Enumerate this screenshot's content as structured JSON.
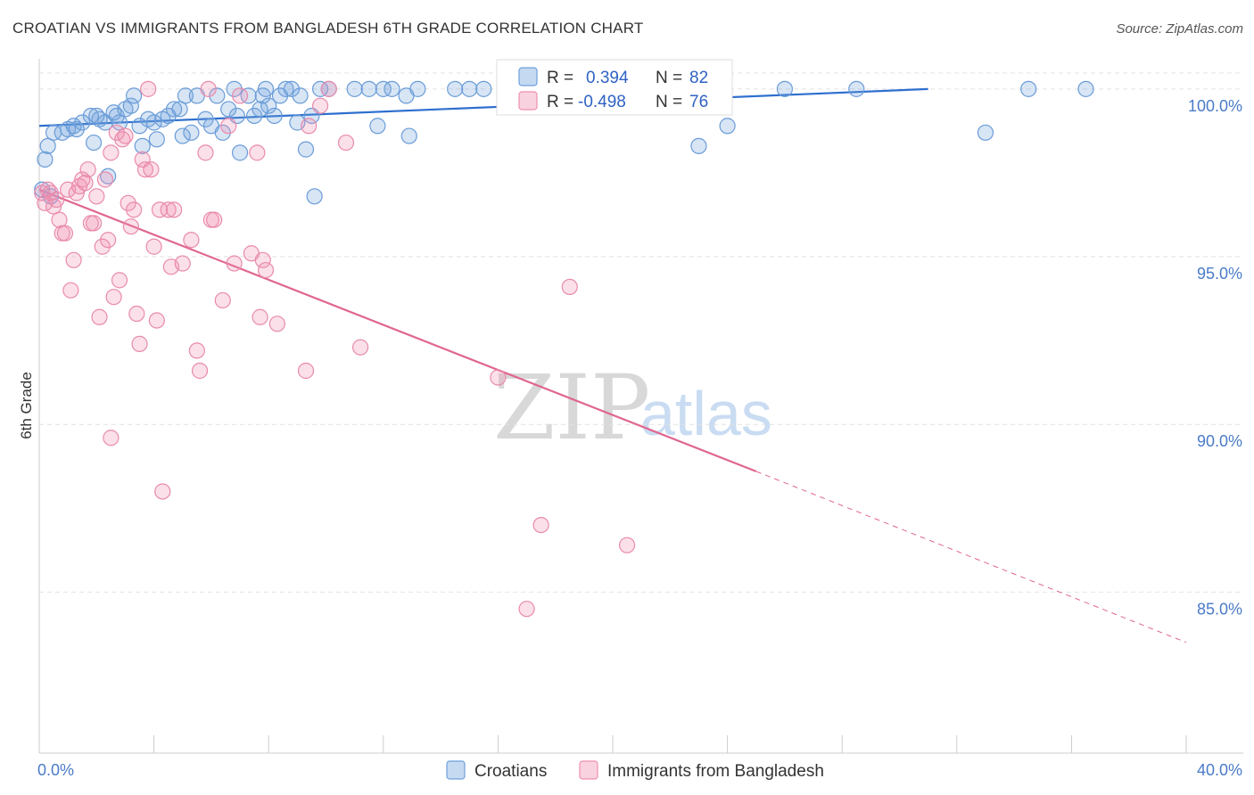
{
  "title": "CROATIAN VS IMMIGRANTS FROM BANGLADESH 6TH GRADE CORRELATION CHART",
  "source": "Source: ZipAtlas.com",
  "watermark": {
    "zip": "ZIP",
    "atlas": "atlas"
  },
  "chart_data": {
    "type": "scatter",
    "title": "CROATIAN VS IMMIGRANTS FROM BANGLADESH 6TH GRADE CORRELATION CHART",
    "xlabel": "",
    "ylabel": "6th Grade",
    "xlim": [
      0,
      40
    ],
    "ylim": [
      80.2,
      100.9
    ],
    "x_tick_labels": [
      "0.0%",
      "40.0%"
    ],
    "y_ticks": [
      85,
      90,
      95,
      100
    ],
    "y_tick_labels": [
      "85.0%",
      "90.0%",
      "95.0%",
      "100.0%"
    ],
    "legend": [
      {
        "name": "Croatians",
        "color": "#6fa0dc",
        "r_label": "R =",
        "r_value": "0.394",
        "n_label": "N =",
        "n_value": "82"
      },
      {
        "name": "Immigrants from Bangladesh",
        "color": "#ef8fb0",
        "r_label": "R =",
        "r_value": "-0.498",
        "n_label": "N =",
        "n_value": "76"
      }
    ],
    "series": [
      {
        "name": "Croatians",
        "color": "#6fa0dc",
        "stroke": "#6a9cd8",
        "trend": {
          "x0": 0.0,
          "y0": 98.9,
          "x1": 31.0,
          "y1": 100.0,
          "color": "#2e6fcf"
        },
        "points": [
          [
            0.2,
            97.9
          ],
          [
            0.3,
            98.3
          ],
          [
            0.5,
            98.7
          ],
          [
            0.8,
            98.7
          ],
          [
            1.0,
            98.8
          ],
          [
            1.2,
            98.9
          ],
          [
            1.3,
            98.8
          ],
          [
            1.5,
            99.0
          ],
          [
            1.8,
            99.2
          ],
          [
            1.9,
            98.4
          ],
          [
            2.1,
            99.1
          ],
          [
            2.3,
            99.0
          ],
          [
            2.4,
            97.4
          ],
          [
            2.6,
            99.3
          ],
          [
            2.7,
            99.2
          ],
          [
            2.8,
            99.0
          ],
          [
            3.0,
            99.4
          ],
          [
            3.2,
            99.5
          ],
          [
            3.3,
            99.8
          ],
          [
            3.5,
            98.9
          ],
          [
            3.6,
            98.3
          ],
          [
            3.8,
            99.1
          ],
          [
            4.0,
            99.0
          ],
          [
            4.1,
            98.5
          ],
          [
            4.3,
            99.1
          ],
          [
            4.5,
            99.2
          ],
          [
            4.7,
            99.4
          ],
          [
            4.9,
            99.4
          ],
          [
            5.0,
            98.6
          ],
          [
            5.1,
            99.8
          ],
          [
            5.3,
            98.7
          ],
          [
            5.5,
            99.8
          ],
          [
            5.8,
            99.1
          ],
          [
            6.0,
            98.9
          ],
          [
            6.2,
            99.8
          ],
          [
            6.4,
            98.7
          ],
          [
            6.6,
            99.4
          ],
          [
            6.8,
            100.0
          ],
          [
            6.9,
            99.2
          ],
          [
            7.0,
            98.1
          ],
          [
            7.3,
            99.8
          ],
          [
            7.5,
            99.2
          ],
          [
            7.7,
            99.4
          ],
          [
            7.8,
            99.8
          ],
          [
            7.9,
            100.0
          ],
          [
            8.2,
            99.2
          ],
          [
            8.4,
            99.8
          ],
          [
            8.6,
            100.0
          ],
          [
            8.8,
            100.0
          ],
          [
            9.0,
            99.0
          ],
          [
            9.1,
            99.8
          ],
          [
            9.3,
            98.2
          ],
          [
            9.5,
            99.2
          ],
          [
            9.6,
            96.8
          ],
          [
            9.8,
            100.0
          ],
          [
            10.1,
            100.0
          ],
          [
            11.0,
            100.0
          ],
          [
            11.5,
            100.0
          ],
          [
            11.8,
            98.9
          ],
          [
            12.0,
            100.0
          ],
          [
            12.3,
            100.0
          ],
          [
            12.8,
            99.8
          ],
          [
            12.9,
            98.6
          ],
          [
            13.2,
            100.0
          ],
          [
            14.5,
            100.0
          ],
          [
            15.0,
            100.0
          ],
          [
            15.5,
            100.0
          ],
          [
            16.5,
            100.0
          ],
          [
            17.5,
            100.0
          ],
          [
            18.0,
            99.9
          ],
          [
            19.0,
            100.0
          ],
          [
            23.0,
            98.3
          ],
          [
            24.0,
            98.9
          ],
          [
            26.0,
            100.0
          ],
          [
            28.5,
            100.0
          ],
          [
            33.0,
            98.7
          ],
          [
            34.5,
            100.0
          ],
          [
            36.5,
            100.0
          ],
          [
            0.1,
            97.0
          ],
          [
            0.4,
            96.8
          ],
          [
            2.0,
            99.2
          ],
          [
            8.0,
            99.5
          ]
        ]
      },
      {
        "name": "Immigrants from Bangladesh",
        "color": "#ef8fb0",
        "stroke": "#e98aac",
        "trend": {
          "x0": 0.0,
          "y0": 97.0,
          "x1": 25.0,
          "y1": 88.6,
          "dash_x1": 40.0,
          "dash_y1": 83.5,
          "color": "#e0668f"
        },
        "points": [
          [
            0.1,
            96.9
          ],
          [
            0.2,
            96.6
          ],
          [
            0.3,
            97.0
          ],
          [
            0.4,
            96.9
          ],
          [
            0.5,
            96.5
          ],
          [
            0.6,
            96.7
          ],
          [
            0.7,
            96.1
          ],
          [
            0.8,
            95.7
          ],
          [
            0.9,
            95.7
          ],
          [
            1.0,
            97.0
          ],
          [
            1.1,
            94.0
          ],
          [
            1.2,
            94.9
          ],
          [
            1.3,
            96.9
          ],
          [
            1.4,
            97.1
          ],
          [
            1.5,
            97.3
          ],
          [
            1.6,
            97.2
          ],
          [
            1.7,
            97.6
          ],
          [
            1.8,
            96.0
          ],
          [
            1.9,
            96.0
          ],
          [
            2.0,
            96.8
          ],
          [
            2.1,
            93.2
          ],
          [
            2.2,
            95.3
          ],
          [
            2.3,
            97.3
          ],
          [
            2.4,
            95.5
          ],
          [
            2.5,
            98.1
          ],
          [
            2.6,
            93.8
          ],
          [
            2.7,
            98.7
          ],
          [
            2.8,
            94.3
          ],
          [
            2.9,
            98.5
          ],
          [
            3.0,
            98.6
          ],
          [
            3.1,
            96.6
          ],
          [
            3.2,
            95.9
          ],
          [
            3.3,
            96.4
          ],
          [
            3.4,
            93.3
          ],
          [
            3.5,
            92.4
          ],
          [
            3.6,
            97.9
          ],
          [
            3.7,
            97.6
          ],
          [
            3.8,
            100.0
          ],
          [
            3.9,
            97.6
          ],
          [
            4.0,
            95.3
          ],
          [
            4.1,
            93.1
          ],
          [
            4.2,
            96.4
          ],
          [
            4.3,
            88.0
          ],
          [
            4.5,
            96.4
          ],
          [
            4.6,
            94.7
          ],
          [
            4.7,
            96.4
          ],
          [
            5.0,
            94.8
          ],
          [
            5.3,
            95.5
          ],
          [
            5.5,
            92.2
          ],
          [
            5.6,
            91.6
          ],
          [
            5.8,
            98.1
          ],
          [
            5.9,
            100.0
          ],
          [
            6.0,
            96.1
          ],
          [
            6.1,
            96.1
          ],
          [
            6.4,
            93.7
          ],
          [
            6.6,
            98.9
          ],
          [
            6.8,
            94.8
          ],
          [
            7.0,
            99.8
          ],
          [
            7.4,
            95.1
          ],
          [
            7.6,
            98.1
          ],
          [
            7.7,
            93.2
          ],
          [
            7.8,
            94.9
          ],
          [
            7.9,
            94.6
          ],
          [
            8.3,
            93.0
          ],
          [
            9.3,
            91.6
          ],
          [
            9.4,
            98.9
          ],
          [
            9.8,
            99.5
          ],
          [
            10.1,
            100.0
          ],
          [
            10.7,
            98.4
          ],
          [
            11.2,
            92.3
          ],
          [
            16.0,
            91.4
          ],
          [
            17.0,
            84.5
          ],
          [
            17.5,
            87.0
          ],
          [
            18.5,
            94.1
          ],
          [
            20.5,
            86.4
          ],
          [
            2.5,
            89.6
          ]
        ]
      }
    ]
  }
}
